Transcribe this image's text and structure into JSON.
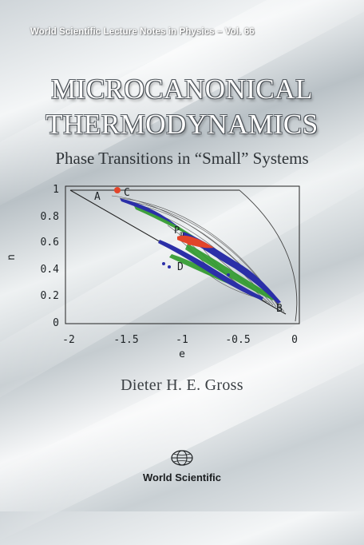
{
  "series_line": "World Scientific Lecture Notes in Physics – Vol. 66",
  "title_line1": "MICROCANONICAL",
  "title_line2": "THERMODYNAMICS",
  "subtitle": "Phase Transitions in “Small” Systems",
  "author": "Dieter H. E. Gross",
  "publisher": "World Scientific",
  "colors": {
    "blue": "#2b2fa8",
    "green": "#2f9a2c",
    "red": "#e2452a",
    "dark": "#1e2326"
  },
  "chart_data": {
    "type": "contour",
    "xlabel": "e",
    "ylabel": "n",
    "xlim": [
      -2,
      0
    ],
    "ylim": [
      0,
      1
    ],
    "x_ticks": [
      "-2",
      "-1.5",
      "-1",
      "-0.5",
      "0"
    ],
    "y_ticks": [
      "0",
      "0.2",
      "0.4",
      "0.6",
      "0.8",
      "1"
    ],
    "point_labels": [
      {
        "label": "A",
        "x": -1.8,
        "y": 0.95
      },
      {
        "label": "C",
        "x": -1.48,
        "y": 0.98
      },
      {
        "label": "P",
        "sub": "m",
        "x": -1.04,
        "y": 0.68
      },
      {
        "label": "D",
        "x": -1.02,
        "y": 0.43
      },
      {
        "label": "B",
        "x": -0.12,
        "y": 0.1
      }
    ],
    "marked_point": {
      "x": -1.58,
      "y": 0.99
    }
  }
}
